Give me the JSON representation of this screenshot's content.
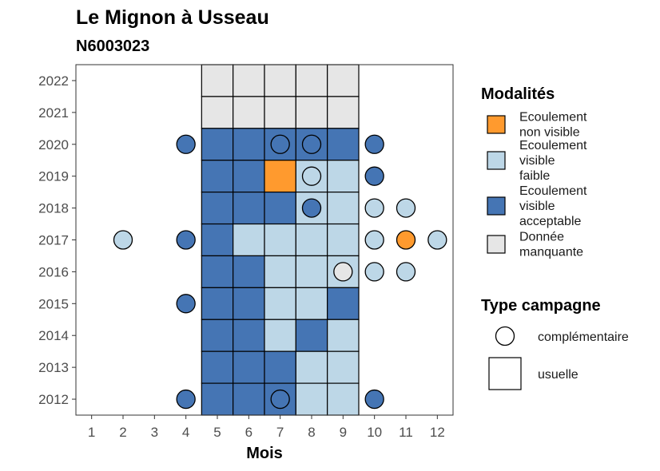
{
  "chart_data": {
    "type": "heatmap",
    "title": "Le Mignon à Usseau",
    "subtitle": "N6003023",
    "xlabel": "Mois",
    "ylabel": "",
    "x_ticks": [
      1,
      2,
      3,
      4,
      5,
      6,
      7,
      8,
      9,
      10,
      11,
      12
    ],
    "y_ticks": [
      2012,
      2013,
      2014,
      2015,
      2016,
      2017,
      2018,
      2019,
      2020,
      2021,
      2022
    ],
    "xlim": [
      0.5,
      12.5
    ],
    "ylim": [
      2011.5,
      2022.5
    ],
    "grid": false,
    "categories": [
      {
        "key": "nv",
        "label": "Ecoulement non visible",
        "color": "#FF9A2E"
      },
      {
        "key": "vf",
        "label": "Ecoulement visible faible",
        "color": "#BDD7E7"
      },
      {
        "key": "va",
        "label": "Ecoulement visible acceptable",
        "color": "#4575B4"
      },
      {
        "key": "dm",
        "label": "Donnée manquante",
        "color": "#E6E6E6"
      }
    ],
    "usuelle": [
      {
        "year": 2022,
        "months": {
          "5": "dm",
          "6": "dm",
          "7": "dm",
          "8": "dm",
          "9": "dm"
        }
      },
      {
        "year": 2021,
        "months": {
          "5": "dm",
          "6": "dm",
          "7": "dm",
          "8": "dm",
          "9": "dm"
        }
      },
      {
        "year": 2020,
        "months": {
          "5": "va",
          "6": "va",
          "7": "va",
          "8": "va",
          "9": "va"
        }
      },
      {
        "year": 2019,
        "months": {
          "5": "va",
          "6": "va",
          "7": "nv",
          "8": "vf",
          "9": "vf"
        }
      },
      {
        "year": 2018,
        "months": {
          "5": "va",
          "6": "va",
          "7": "va",
          "8": "vf",
          "9": "vf"
        }
      },
      {
        "year": 2017,
        "months": {
          "5": "va",
          "6": "vf",
          "7": "vf",
          "8": "vf",
          "9": "vf"
        }
      },
      {
        "year": 2016,
        "months": {
          "5": "va",
          "6": "va",
          "7": "vf",
          "8": "vf",
          "9": "vf"
        }
      },
      {
        "year": 2015,
        "months": {
          "5": "va",
          "6": "va",
          "7": "vf",
          "8": "vf",
          "9": "va"
        }
      },
      {
        "year": 2014,
        "months": {
          "5": "va",
          "6": "va",
          "7": "vf",
          "8": "va",
          "9": "vf"
        }
      },
      {
        "year": 2013,
        "months": {
          "5": "va",
          "6": "va",
          "7": "va",
          "8": "vf",
          "9": "vf"
        }
      },
      {
        "year": 2012,
        "months": {
          "5": "va",
          "6": "va",
          "7": "va",
          "8": "vf",
          "9": "vf"
        }
      }
    ],
    "complementaire": [
      {
        "year": 2020,
        "month": 4,
        "cat": "va"
      },
      {
        "year": 2020,
        "month": 7,
        "cat": "va"
      },
      {
        "year": 2020,
        "month": 8,
        "cat": "va"
      },
      {
        "year": 2020,
        "month": 10,
        "cat": "va"
      },
      {
        "year": 2019,
        "month": 8,
        "cat": "vf"
      },
      {
        "year": 2019,
        "month": 10,
        "cat": "va"
      },
      {
        "year": 2018,
        "month": 8,
        "cat": "va"
      },
      {
        "year": 2018,
        "month": 10,
        "cat": "vf"
      },
      {
        "year": 2018,
        "month": 11,
        "cat": "vf"
      },
      {
        "year": 2017,
        "month": 2,
        "cat": "vf"
      },
      {
        "year": 2017,
        "month": 4,
        "cat": "va"
      },
      {
        "year": 2017,
        "month": 10,
        "cat": "vf"
      },
      {
        "year": 2017,
        "month": 11,
        "cat": "nv"
      },
      {
        "year": 2017,
        "month": 12,
        "cat": "vf"
      },
      {
        "year": 2016,
        "month": 9,
        "cat": "dm"
      },
      {
        "year": 2016,
        "month": 10,
        "cat": "vf"
      },
      {
        "year": 2016,
        "month": 11,
        "cat": "vf"
      },
      {
        "year": 2015,
        "month": 4,
        "cat": "va"
      },
      {
        "year": 2012,
        "month": 4,
        "cat": "va"
      },
      {
        "year": 2012,
        "month": 7,
        "cat": "va"
      },
      {
        "year": 2012,
        "month": 10,
        "cat": "va"
      }
    ],
    "legend": {
      "position": "right",
      "modalites_title": "Modalités",
      "modalites_lines": [
        [
          "Ecoulement",
          "non visible"
        ],
        [
          "Ecoulement",
          "visible",
          "faible"
        ],
        [
          "Ecoulement",
          "visible",
          "acceptable"
        ],
        [
          "Donnée",
          "manquante"
        ]
      ],
      "type_title": "Type campagne",
      "type_items": [
        {
          "shape": "circle",
          "label": "complémentaire"
        },
        {
          "shape": "square",
          "label": "usuelle"
        }
      ]
    }
  }
}
